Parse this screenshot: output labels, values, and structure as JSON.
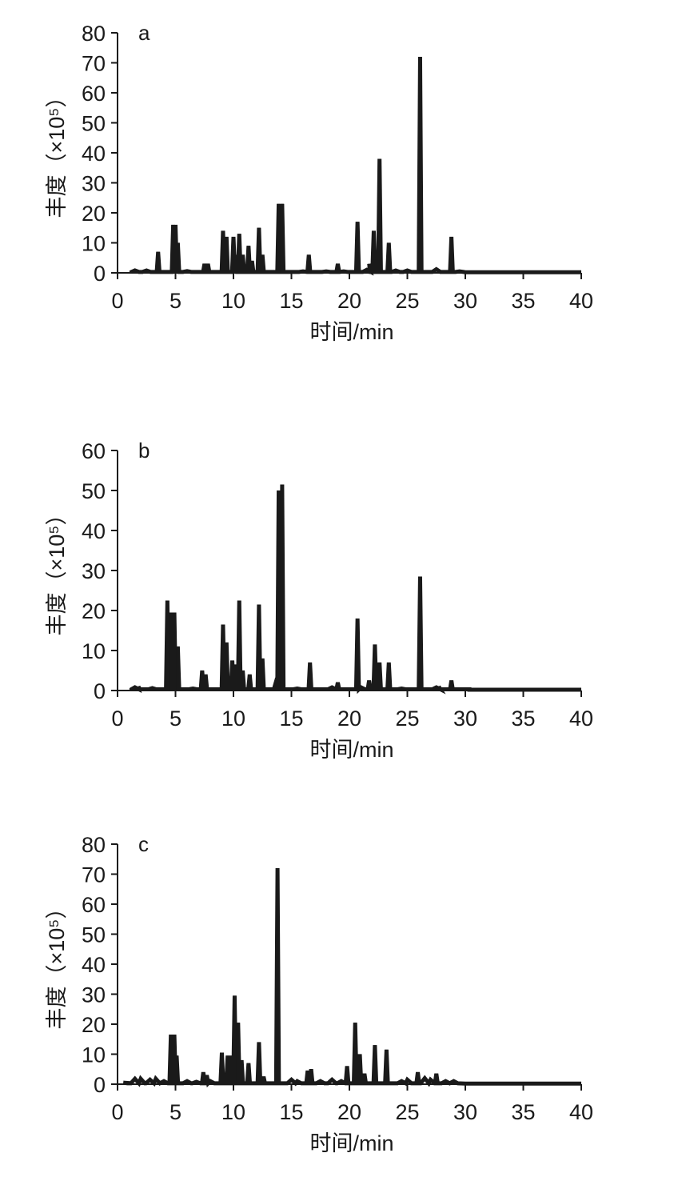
{
  "chart_data": [
    {
      "type": "line",
      "panel_label": "a",
      "xlabel": "时间/min",
      "ylabel": "丰度（×10⁵）",
      "xlim": [
        0,
        40
      ],
      "ylim": [
        0,
        80
      ],
      "x_ticks": [
        "0",
        "5",
        "10",
        "15",
        "20",
        "25",
        "30",
        "35",
        "40"
      ],
      "y_ticks": [
        "0",
        "10",
        "20",
        "30",
        "40",
        "50",
        "60",
        "70",
        "80"
      ],
      "grid": false,
      "baseline_noise": [
        [
          1.5,
          0.8
        ],
        [
          2.5,
          0.8
        ],
        [
          6.0,
          0.6
        ],
        [
          16.0,
          0.5
        ],
        [
          18.0,
          0.5
        ],
        [
          19.5,
          0.5
        ],
        [
          21.5,
          1.0
        ],
        [
          24.0,
          0.8
        ],
        [
          25.0,
          0.8
        ],
        [
          27.5,
          1.2
        ],
        [
          29.5,
          0.5
        ]
      ],
      "peaks": [
        {
          "x": 3.5,
          "y": 7
        },
        {
          "x": 4.8,
          "y": 16
        },
        {
          "x": 5.0,
          "y": 16
        },
        {
          "x": 5.2,
          "y": 10
        },
        {
          "x": 7.5,
          "y": 3
        },
        {
          "x": 7.8,
          "y": 3
        },
        {
          "x": 9.1,
          "y": 14
        },
        {
          "x": 9.4,
          "y": 12
        },
        {
          "x": 10.0,
          "y": 12
        },
        {
          "x": 10.2,
          "y": 6
        },
        {
          "x": 10.5,
          "y": 13
        },
        {
          "x": 10.8,
          "y": 6
        },
        {
          "x": 11.3,
          "y": 9
        },
        {
          "x": 11.6,
          "y": 4
        },
        {
          "x": 12.2,
          "y": 15
        },
        {
          "x": 12.5,
          "y": 6
        },
        {
          "x": 13.9,
          "y": 23
        },
        {
          "x": 14.2,
          "y": 23
        },
        {
          "x": 16.5,
          "y": 6
        },
        {
          "x": 19.0,
          "y": 3
        },
        {
          "x": 20.7,
          "y": 17
        },
        {
          "x": 21.7,
          "y": 3
        },
        {
          "x": 22.1,
          "y": 14
        },
        {
          "x": 22.6,
          "y": 38
        },
        {
          "x": 23.4,
          "y": 10
        },
        {
          "x": 26.1,
          "y": 72
        },
        {
          "x": 28.8,
          "y": 12
        }
      ]
    },
    {
      "type": "line",
      "panel_label": "b",
      "xlabel": "时间/min",
      "ylabel": "丰度（×10⁵）",
      "xlim": [
        0,
        40
      ],
      "ylim": [
        0,
        60
      ],
      "x_ticks": [
        "0",
        "5",
        "10",
        "15",
        "20",
        "25",
        "30",
        "35",
        "40"
      ],
      "y_ticks": [
        "0",
        "10",
        "20",
        "30",
        "40",
        "50",
        "60"
      ],
      "grid": false,
      "baseline_noise": [
        [
          1.5,
          0.8
        ],
        [
          3.0,
          0.6
        ],
        [
          6.5,
          0.5
        ],
        [
          15.5,
          0.5
        ],
        [
          18.5,
          0.8
        ],
        [
          21.0,
          0.8
        ],
        [
          24.5,
          0.5
        ],
        [
          27.5,
          0.8
        ],
        [
          30.0,
          0.3
        ]
      ],
      "peaks": [
        {
          "x": 1.8,
          "y": 1
        },
        {
          "x": 4.3,
          "y": 22.5
        },
        {
          "x": 4.6,
          "y": 19.5
        },
        {
          "x": 4.9,
          "y": 19.5
        },
        {
          "x": 5.2,
          "y": 11
        },
        {
          "x": 7.3,
          "y": 5
        },
        {
          "x": 7.6,
          "y": 4
        },
        {
          "x": 9.1,
          "y": 16.5
        },
        {
          "x": 9.4,
          "y": 12
        },
        {
          "x": 9.9,
          "y": 7.5
        },
        {
          "x": 10.2,
          "y": 6.5
        },
        {
          "x": 10.5,
          "y": 22.5
        },
        {
          "x": 10.8,
          "y": 5
        },
        {
          "x": 11.4,
          "y": 4
        },
        {
          "x": 12.2,
          "y": 21.5
        },
        {
          "x": 12.5,
          "y": 8
        },
        {
          "x": 13.6,
          "y": 1.5
        },
        {
          "x": 13.9,
          "y": 50
        },
        {
          "x": 14.2,
          "y": 51.5
        },
        {
          "x": 16.6,
          "y": 7
        },
        {
          "x": 19.0,
          "y": 2
        },
        {
          "x": 20.7,
          "y": 18
        },
        {
          "x": 21.7,
          "y": 2.5
        },
        {
          "x": 22.2,
          "y": 11.5
        },
        {
          "x": 22.6,
          "y": 7
        },
        {
          "x": 23.4,
          "y": 7
        },
        {
          "x": 26.1,
          "y": 28.5
        },
        {
          "x": 27.7,
          "y": 1
        },
        {
          "x": 28.8,
          "y": 2.5
        }
      ]
    },
    {
      "type": "line",
      "panel_label": "c",
      "xlabel": "时间/min",
      "ylabel": "丰度（×10⁵）",
      "xlim": [
        0,
        40
      ],
      "ylim": [
        0,
        80
      ],
      "x_ticks": [
        "0",
        "5",
        "10",
        "15",
        "20",
        "25",
        "30",
        "35",
        "40"
      ],
      "y_ticks": [
        "0",
        "10",
        "20",
        "30",
        "40",
        "50",
        "60",
        "70",
        "80"
      ],
      "grid": false,
      "baseline_noise": [
        [
          0.5,
          0.5
        ],
        [
          1.5,
          1.8
        ],
        [
          2.0,
          1.8
        ],
        [
          2.8,
          1.5
        ],
        [
          3.3,
          1.8
        ],
        [
          4.0,
          1.0
        ],
        [
          6.0,
          1.0
        ],
        [
          6.8,
          0.8
        ],
        [
          8.0,
          1.0
        ],
        [
          15.0,
          1.5
        ],
        [
          15.5,
          1.0
        ],
        [
          17.5,
          1.0
        ],
        [
          18.5,
          1.5
        ],
        [
          19.3,
          1.0
        ],
        [
          24.5,
          1.0
        ],
        [
          25.0,
          1.5
        ],
        [
          26.5,
          2.0
        ],
        [
          27.0,
          1.5
        ],
        [
          28.3,
          1.0
        ],
        [
          29.0,
          1.0
        ]
      ],
      "peaks": [
        {
          "x": 4.6,
          "y": 16.5
        },
        {
          "x": 4.9,
          "y": 16.5
        },
        {
          "x": 5.1,
          "y": 9.5
        },
        {
          "x": 7.4,
          "y": 4
        },
        {
          "x": 7.7,
          "y": 3
        },
        {
          "x": 9.0,
          "y": 10.5
        },
        {
          "x": 9.5,
          "y": 9.5
        },
        {
          "x": 9.8,
          "y": 9.5
        },
        {
          "x": 10.1,
          "y": 29.5
        },
        {
          "x": 10.4,
          "y": 20.5
        },
        {
          "x": 10.7,
          "y": 8
        },
        {
          "x": 11.3,
          "y": 7
        },
        {
          "x": 12.2,
          "y": 14
        },
        {
          "x": 12.6,
          "y": 2.5
        },
        {
          "x": 13.8,
          "y": 72
        },
        {
          "x": 16.4,
          "y": 4.5
        },
        {
          "x": 16.7,
          "y": 5
        },
        {
          "x": 19.8,
          "y": 6
        },
        {
          "x": 20.5,
          "y": 20.5
        },
        {
          "x": 20.9,
          "y": 10
        },
        {
          "x": 21.3,
          "y": 3.5
        },
        {
          "x": 22.2,
          "y": 13
        },
        {
          "x": 23.2,
          "y": 11.5
        },
        {
          "x": 25.9,
          "y": 4
        },
        {
          "x": 27.5,
          "y": 3.5
        }
      ]
    }
  ]
}
